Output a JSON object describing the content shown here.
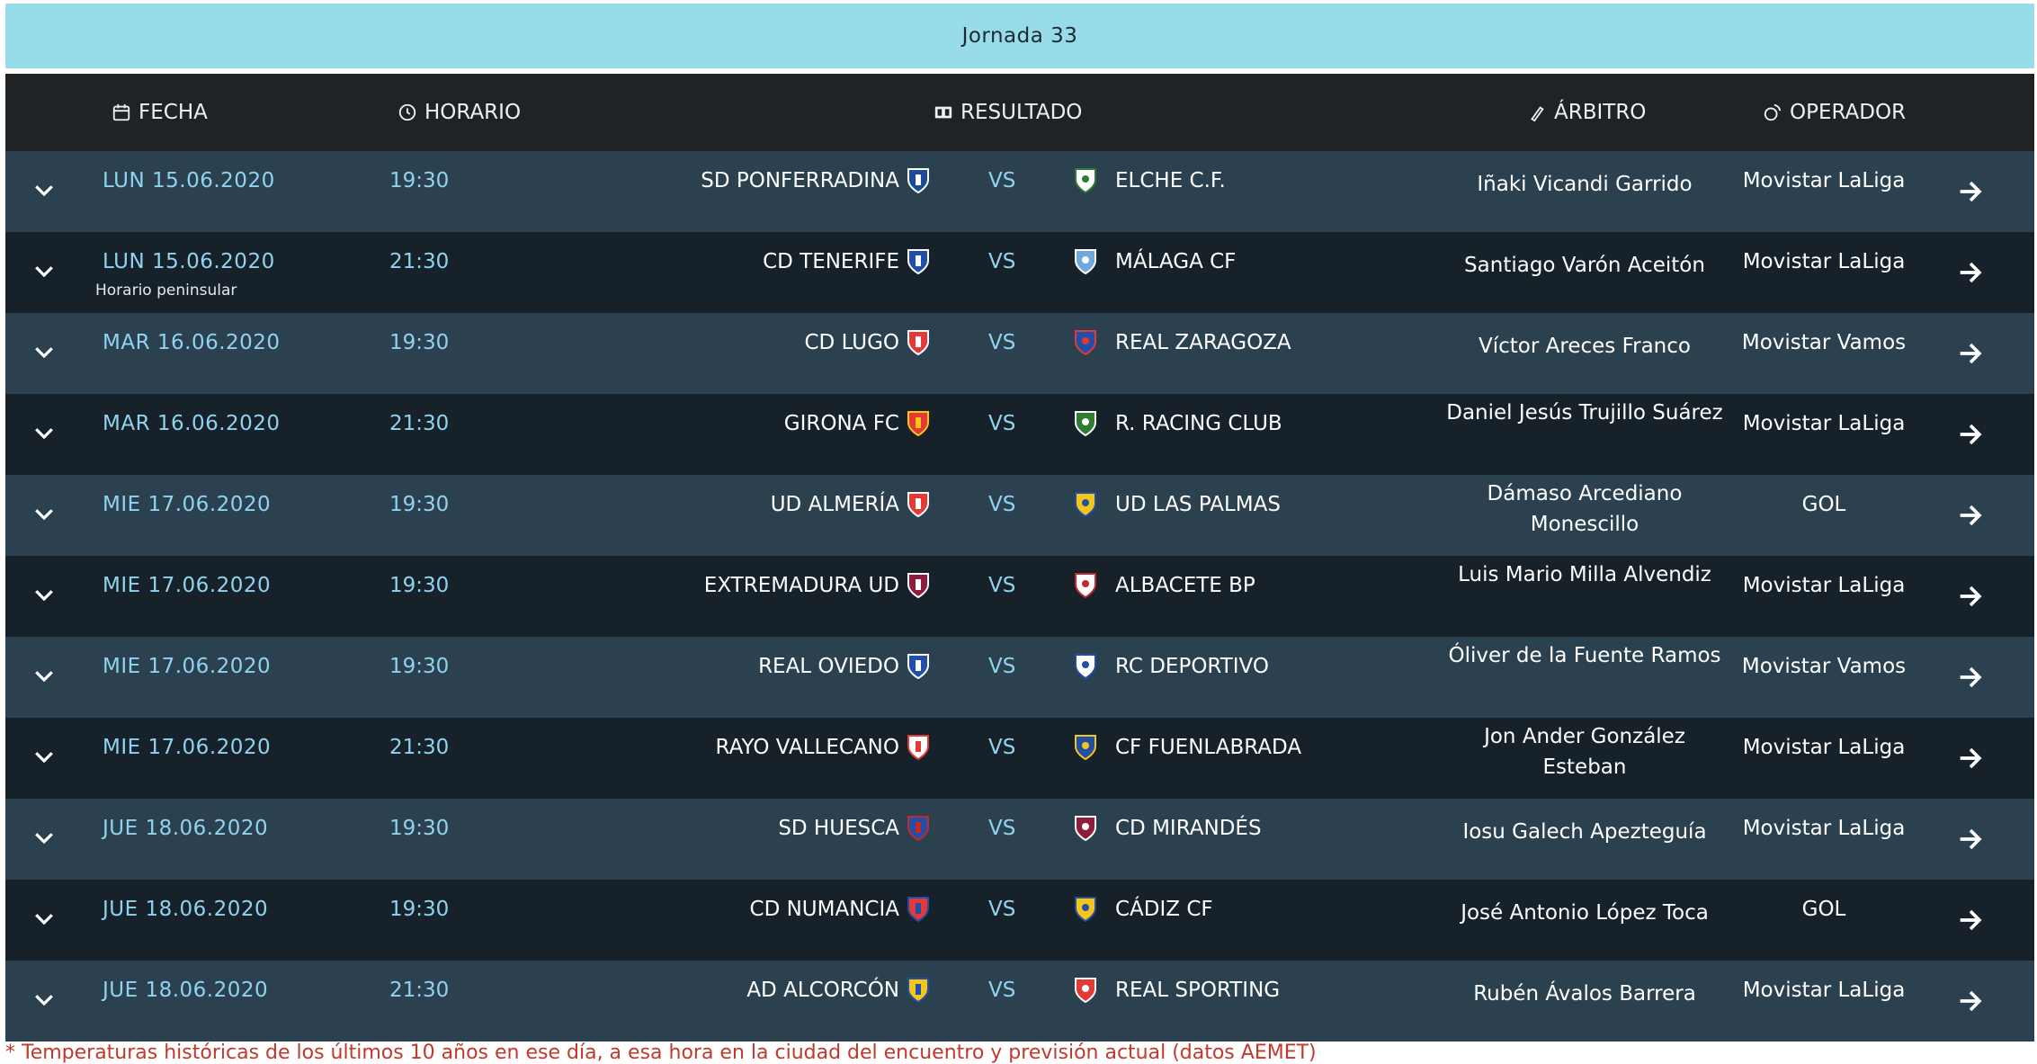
{
  "banner": {
    "title": "Jornada 33"
  },
  "header": {
    "fecha": "FECHA",
    "horario": "HORARIO",
    "resultado": "RESULTADO",
    "arbitro": "ÁRBITRO",
    "operador": "OPERADOR"
  },
  "matches": [
    {
      "date": "LUN 15.06.2020",
      "note": "",
      "time": "19:30",
      "home": "SD PONFERRADINA",
      "vs": "VS",
      "away": "ELCHE C.F.",
      "referee": "Iñaki Vicandi Garrido",
      "operator": "Movistar LaLiga",
      "home_colors": [
        "#1a4a9a",
        "#ffffff"
      ],
      "away_colors": [
        "#ffffff",
        "#2e7d32"
      ]
    },
    {
      "date": "LUN 15.06.2020",
      "note": "Horario peninsular",
      "time": "21:30",
      "home": "CD TENERIFE",
      "vs": "VS",
      "away": "MÁLAGA CF",
      "referee": "Santiago Varón Aceitón",
      "operator": "Movistar LaLiga",
      "home_colors": [
        "#1f4fa8",
        "#ffffff"
      ],
      "away_colors": [
        "#6fa8dc",
        "#ffffff"
      ]
    },
    {
      "date": "MAR 16.06.2020",
      "note": "",
      "time": "19:30",
      "home": "CD LUGO",
      "vs": "VS",
      "away": "REAL ZARAGOZA",
      "referee": "Víctor Areces Franco",
      "operator": "Movistar Vamos",
      "home_colors": [
        "#e53935",
        "#ffffff"
      ],
      "away_colors": [
        "#1f4fa8",
        "#e53935"
      ]
    },
    {
      "date": "MAR 16.06.2020",
      "note": "",
      "time": "21:30",
      "home": "GIRONA FC",
      "vs": "VS",
      "away": "R. RACING CLUB",
      "referee": "Daniel Jesús Trujillo Suárez",
      "operator": "Movistar LaLiga",
      "home_colors": [
        "#e53935",
        "#f5c518"
      ],
      "away_colors": [
        "#2e7d32",
        "#ffffff"
      ]
    },
    {
      "date": "MIE 17.06.2020",
      "note": "",
      "time": "19:30",
      "home": "UD ALMERÍA",
      "vs": "VS",
      "away": "UD LAS PALMAS",
      "referee": "Dámaso Arcediano Monescillo",
      "operator": "GOL",
      "home_colors": [
        "#e53935",
        "#ffffff"
      ],
      "away_colors": [
        "#f5c518",
        "#1f4fa8"
      ]
    },
    {
      "date": "MIE 17.06.2020",
      "note": "",
      "time": "19:30",
      "home": "EXTREMADURA UD",
      "vs": "VS",
      "away": "ALBACETE BP",
      "referee": "Luis Mario Milla Alvendiz",
      "operator": "Movistar LaLiga",
      "home_colors": [
        "#8e1c3d",
        "#ffffff"
      ],
      "away_colors": [
        "#ffffff",
        "#c62828"
      ]
    },
    {
      "date": "MIE 17.06.2020",
      "note": "",
      "time": "19:30",
      "home": "REAL OVIEDO",
      "vs": "VS",
      "away": "RC DEPORTIVO",
      "referee": "Óliver de la Fuente Ramos",
      "operator": "Movistar Vamos",
      "home_colors": [
        "#1f4fa8",
        "#ffffff"
      ],
      "away_colors": [
        "#ffffff",
        "#1f4fa8"
      ]
    },
    {
      "date": "MIE 17.06.2020",
      "note": "",
      "time": "21:30",
      "home": "RAYO VALLECANO",
      "vs": "VS",
      "away": "CF FUENLABRADA",
      "referee": "Jon Ander González Esteban",
      "operator": "Movistar LaLiga",
      "home_colors": [
        "#ffffff",
        "#e53935"
      ],
      "away_colors": [
        "#1f4fa8",
        "#f5c518"
      ]
    },
    {
      "date": "JUE 18.06.2020",
      "note": "",
      "time": "19:30",
      "home": "SD HUESCA",
      "vs": "VS",
      "away": "CD MIRANDÉS",
      "referee": "Iosu Galech Apezteguía",
      "operator": "Movistar LaLiga",
      "home_colors": [
        "#1f4fa8",
        "#c62828"
      ],
      "away_colors": [
        "#8e1c3d",
        "#ffffff"
      ]
    },
    {
      "date": "JUE 18.06.2020",
      "note": "",
      "time": "19:30",
      "home": "CD NUMANCIA",
      "vs": "VS",
      "away": "CÁDIZ CF",
      "referee": "José Antonio López Toca",
      "operator": "GOL",
      "home_colors": [
        "#e53935",
        "#1f4fa8"
      ],
      "away_colors": [
        "#f5c518",
        "#1f4fa8"
      ]
    },
    {
      "date": "JUE 18.06.2020",
      "note": "",
      "time": "21:30",
      "home": "AD ALCORCÓN",
      "vs": "VS",
      "away": "REAL SPORTING",
      "referee": "Rubén Ávalos Barrera",
      "operator": "Movistar LaLiga",
      "home_colors": [
        "#f5c518",
        "#1f4fa8"
      ],
      "away_colors": [
        "#e53935",
        "#ffffff"
      ]
    }
  ],
  "colors": {
    "banner": "#98dbe9",
    "header_bg": "#1f2326",
    "row_alt": "#2c4150",
    "row_dark": "#172129",
    "accent": "#8fd3f0",
    "footnote": "#c0392b"
  },
  "icons": {
    "row_toggle": "chevron-down-icon",
    "row_open": "arrow-right-icon"
  }
}
